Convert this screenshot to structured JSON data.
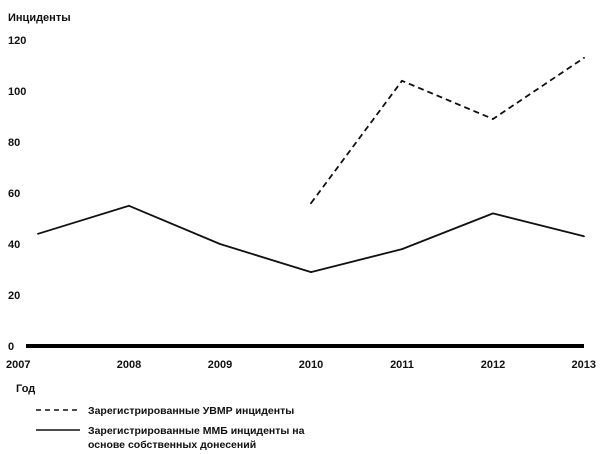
{
  "chart_data": {
    "type": "line",
    "ylabel": "Инциденты",
    "xlabel": "Год",
    "x": [
      2007,
      2008,
      2009,
      2010,
      2011,
      2012,
      2013
    ],
    "xlim": [
      2007,
      2013
    ],
    "ylim": [
      0,
      120
    ],
    "y_ticks": [
      0,
      20,
      40,
      60,
      80,
      100,
      120
    ],
    "grid": false,
    "legend_position": "bottom-left",
    "series": [
      {
        "name": "Зарегистрированные УВМР инциденты",
        "style": "dashed",
        "color": "#111111",
        "points": [
          [
            2010,
            56
          ],
          [
            2011,
            104
          ],
          [
            2012,
            89
          ],
          [
            2013,
            113
          ]
        ]
      },
      {
        "name": "Зарегистрированные ММБ инциденты на основе собственных донесений",
        "name_lines": [
          "Зарегистрированные ММБ инциденты на",
          "основе собственных донесений"
        ],
        "style": "solid",
        "color": "#111111",
        "points": [
          [
            2007,
            44
          ],
          [
            2008,
            55
          ],
          [
            2009,
            40
          ],
          [
            2010,
            29
          ],
          [
            2011,
            38
          ],
          [
            2012,
            52
          ],
          [
            2013,
            43
          ]
        ]
      }
    ]
  }
}
